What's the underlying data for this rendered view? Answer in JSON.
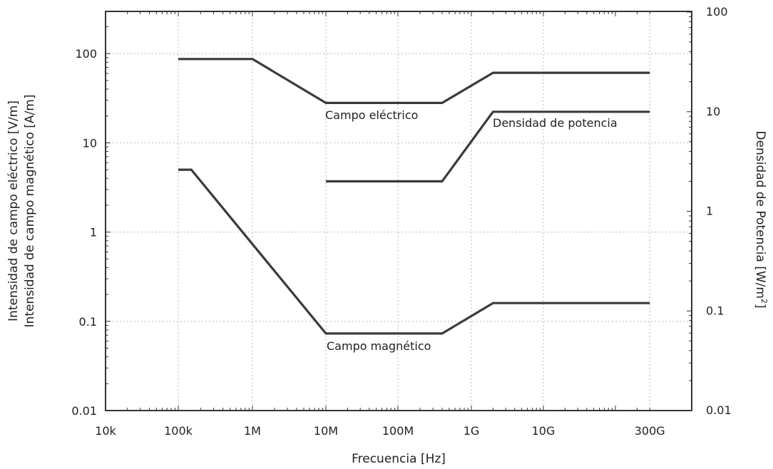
{
  "chart_data": {
    "type": "line",
    "x_scale": "log",
    "y_scale": "log",
    "y2_scale": "log",
    "grid": true,
    "xlabel": "Frecuencia [Hz]",
    "ylabel": [
      "Intensidad de campo eléctrico [V/m]",
      "Intensidad de campo magnético [A/m]"
    ],
    "y2label": {
      "main": "Densidad de Potencia [W/m",
      "sup": "2",
      "end": "]"
    },
    "xlim": [
      10000,
      300000000000
    ],
    "ylim": [
      0.01,
      300
    ],
    "y2lim": [
      0.01,
      100
    ],
    "x_ticks": [
      {
        "value": 10000,
        "label": "10k"
      },
      {
        "value": 100000,
        "label": "100k"
      },
      {
        "value": 1000000,
        "label": "1M"
      },
      {
        "value": 10000000,
        "label": "10M"
      },
      {
        "value": 100000000,
        "label": "100M"
      },
      {
        "value": 1000000000,
        "label": "1G"
      },
      {
        "value": 10000000000,
        "label": "10G"
      },
      {
        "value": 300000000000,
        "label": "300G"
      }
    ],
    "y_ticks": [
      {
        "value": 0.01,
        "label": "0.01"
      },
      {
        "value": 0.1,
        "label": "0.1"
      },
      {
        "value": 1,
        "label": "1"
      },
      {
        "value": 10,
        "label": "10"
      },
      {
        "value": 100,
        "label": "100"
      }
    ],
    "y2_ticks": [
      {
        "value": 0.01,
        "label": "0.01"
      },
      {
        "value": 0.1,
        "label": "0.1"
      },
      {
        "value": 1,
        "label": "1"
      },
      {
        "value": 10,
        "label": "10"
      },
      {
        "value": 100,
        "label": "100"
      }
    ],
    "series": [
      {
        "name": "Campo eléctrico",
        "axis": "left",
        "x": [
          100000,
          1000000,
          10000000,
          400000000,
          2000000000,
          300000000000
        ],
        "y": [
          87,
          87,
          28,
          28,
          61,
          61
        ]
      },
      {
        "name": "Campo magnético",
        "axis": "left",
        "x": [
          100000,
          150000,
          10000000,
          400000000,
          2000000000,
          300000000000
        ],
        "y": [
          5,
          5,
          0.073,
          0.073,
          0.16,
          0.16
        ]
      },
      {
        "name": "Densidad de potencia",
        "axis": "right",
        "x": [
          10000000,
          400000000,
          2000000000,
          300000000000
        ],
        "y": [
          2,
          2,
          10,
          10
        ]
      }
    ],
    "series_color": "#3a3a3a"
  }
}
